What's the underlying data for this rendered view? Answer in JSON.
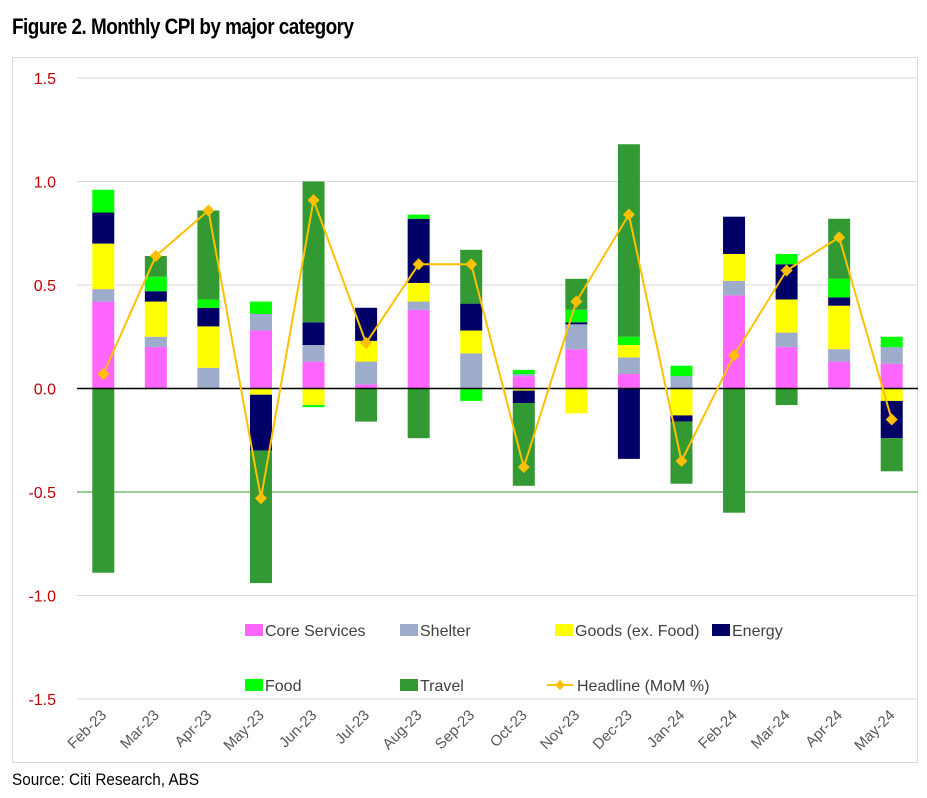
{
  "title": "Figure 2. Monthly CPI by major category",
  "source": "Source: Citi Research, ABS",
  "chart_data": {
    "type": "bar",
    "stacked": true,
    "title": "Figure 2. Monthly CPI by major category",
    "xlabel": "",
    "ylabel": "",
    "ylim": [
      -1.5,
      1.5
    ],
    "yticks": [
      "1.5",
      "1.0",
      "0.5",
      "0.0",
      "-0.5",
      "-1.0",
      "-1.5"
    ],
    "ytick_values": [
      1.5,
      1.0,
      0.5,
      0.0,
      -0.5,
      -1.0,
      -1.5
    ],
    "grid": true,
    "legend_position": "bottom",
    "categories": [
      "Feb-23",
      "Mar-23",
      "Apr-23",
      "May-23",
      "Jun-23",
      "Jul-23",
      "Aug-23",
      "Sep-23",
      "Oct-23",
      "Nov-23",
      "Dec-23",
      "Jan-24",
      "Feb-24",
      "Mar-24",
      "Apr-24",
      "May-24"
    ],
    "series": [
      {
        "name": "Core Services",
        "color": "#ff66ff",
        "values": [
          0.42,
          0.2,
          0.0,
          0.28,
          0.13,
          0.02,
          0.38,
          0.0,
          0.06,
          0.19,
          0.07,
          0.0,
          0.45,
          0.2,
          0.13,
          0.12
        ]
      },
      {
        "name": "Shelter",
        "color": "#9daccb",
        "values": [
          0.06,
          0.05,
          0.1,
          0.08,
          0.08,
          0.11,
          0.04,
          0.17,
          0.01,
          0.12,
          0.08,
          0.06,
          0.07,
          0.07,
          0.06,
          0.08
        ]
      },
      {
        "name": "Goods (ex. Food)",
        "color": "#ffff00",
        "values": [
          0.22,
          0.17,
          0.2,
          -0.03,
          -0.08,
          0.1,
          0.09,
          0.11,
          -0.01,
          -0.12,
          0.06,
          -0.13,
          0.13,
          0.16,
          0.21,
          -0.06
        ]
      },
      {
        "name": "Energy",
        "color": "#000066",
        "values": [
          0.15,
          0.05,
          0.09,
          -0.27,
          0.11,
          0.16,
          0.31,
          0.13,
          -0.06,
          0.01,
          -0.34,
          -0.03,
          0.18,
          0.17,
          0.04,
          -0.18
        ]
      },
      {
        "name": "Food",
        "color": "#00ff00",
        "values": [
          0.11,
          0.07,
          0.04,
          0.06,
          -0.01,
          0.0,
          0.02,
          -0.06,
          0.02,
          0.06,
          0.04,
          0.05,
          0.0,
          0.05,
          0.09,
          0.05
        ]
      },
      {
        "name": "Travel",
        "color": "#339933",
        "values": [
          -0.89,
          0.1,
          0.43,
          -0.64,
          0.68,
          -0.16,
          -0.24,
          0.26,
          -0.4,
          0.15,
          0.93,
          -0.3,
          -0.6,
          -0.08,
          0.29,
          -0.16
        ]
      }
    ],
    "line_series": {
      "name": "Headline (MoM %)",
      "color": "#ffc000",
      "values": [
        0.07,
        0.64,
        0.86,
        -0.53,
        0.91,
        0.22,
        0.6,
        0.6,
        -0.38,
        0.42,
        0.84,
        -0.35,
        0.16,
        0.57,
        0.73,
        -0.15
      ]
    },
    "reference_line": {
      "value": -0.5,
      "color": "#339933"
    },
    "legend": [
      {
        "name": "Core Services",
        "kind": "box",
        "color": "#ff66ff"
      },
      {
        "name": "Shelter",
        "kind": "box",
        "color": "#9daccb"
      },
      {
        "name": "Goods (ex. Food)",
        "kind": "box",
        "color": "#ffff00"
      },
      {
        "name": "Energy",
        "kind": "box",
        "color": "#000066"
      },
      {
        "name": "Food",
        "kind": "box",
        "color": "#00ff00"
      },
      {
        "name": "Travel",
        "kind": "box",
        "color": "#339933"
      },
      {
        "name": "Headline (MoM %)",
        "kind": "line",
        "color": "#ffc000"
      }
    ]
  }
}
